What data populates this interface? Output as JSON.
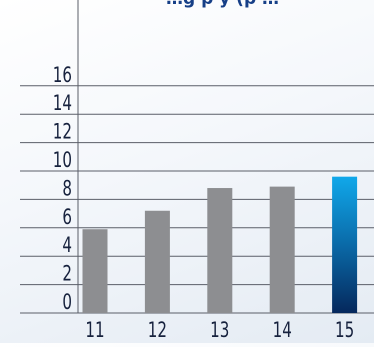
{
  "chart_data": {
    "type": "bar",
    "title": "",
    "xlabel": "",
    "ylabel": "",
    "categories": [
      "11",
      "12",
      "13",
      "14",
      "15"
    ],
    "values": [
      5.9,
      7.2,
      8.8,
      8.9,
      9.6
    ],
    "highlight_index": 4,
    "ylim": [
      0,
      17
    ],
    "yticks": [
      0,
      2,
      4,
      6,
      8,
      10,
      12,
      14,
      16
    ],
    "grid": true,
    "colors": {
      "bar": "#8d8e91",
      "highlight_top": "#10a8ea",
      "highlight_mid": "#0a6aa8",
      "highlight_bottom": "#05285c",
      "grid": "#5a5e68",
      "text": "#16213d"
    }
  },
  "header": {
    "title_fragment": "…g p  y (p  …"
  }
}
